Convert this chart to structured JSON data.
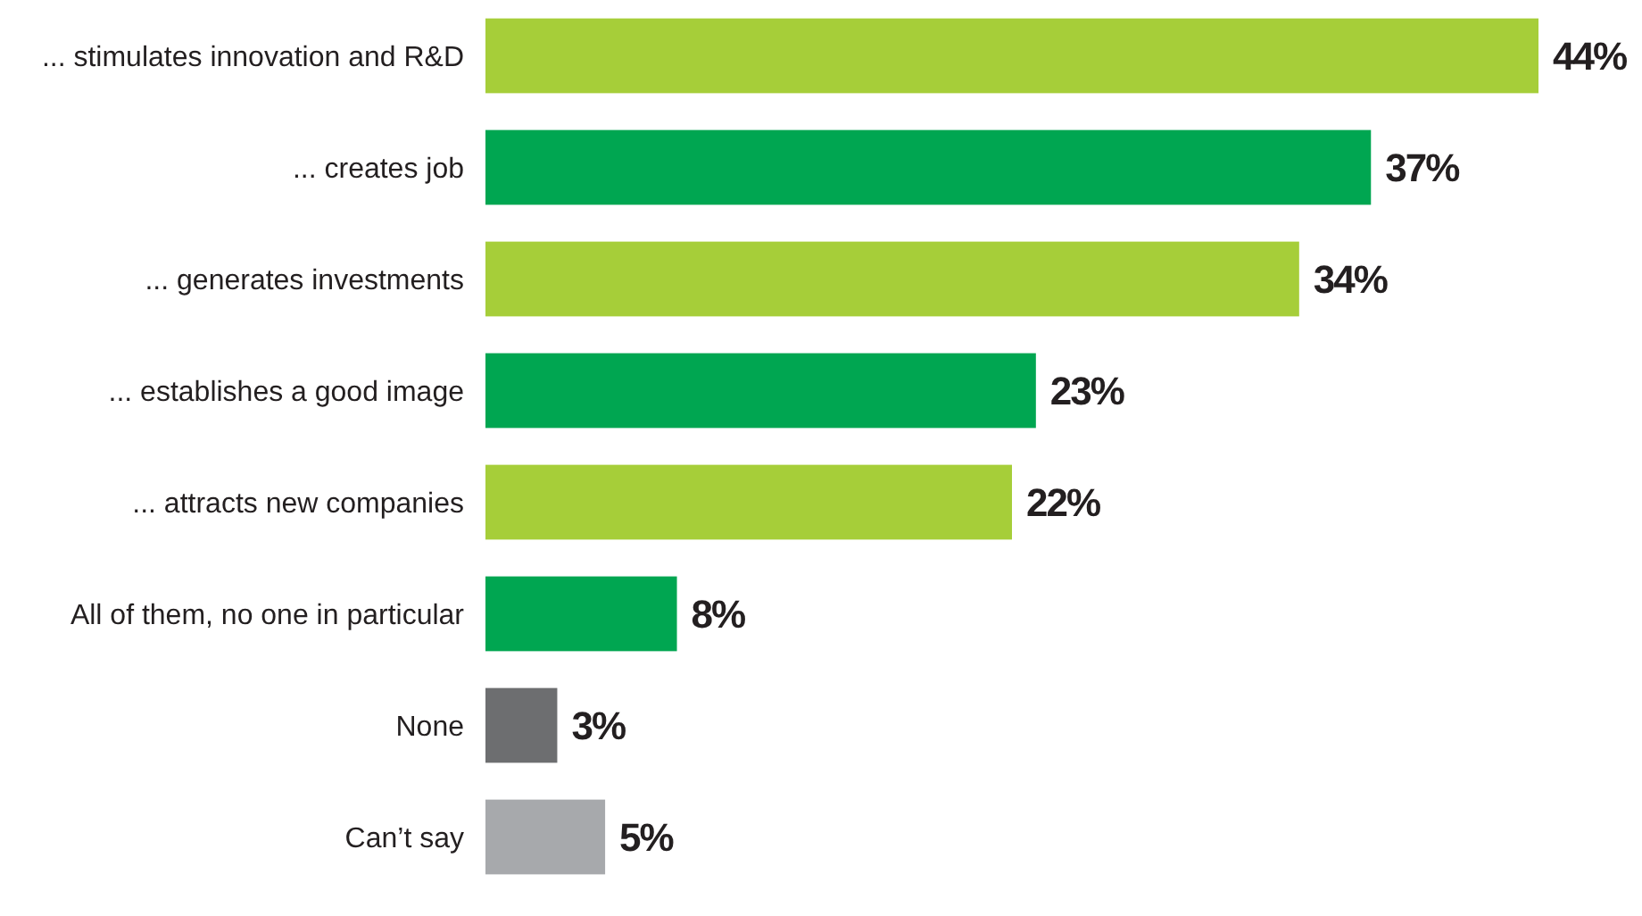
{
  "chart_data": {
    "type": "bar",
    "orientation": "horizontal",
    "categories": [
      "... stimulates innovation and R&D",
      "... creates job",
      "... generates investments",
      "... establishes a good image",
      "... attracts new companies",
      "All of them, no one in particular",
      "None",
      "Can’t say"
    ],
    "values": [
      44,
      37,
      34,
      23,
      22,
      8,
      3,
      5
    ],
    "colors": [
      "#a6ce39",
      "#00a651",
      "#a6ce39",
      "#00a651",
      "#a6ce39",
      "#00a651",
      "#6d6e70",
      "#a7a9ac"
    ],
    "value_labels": [
      "44%",
      "37%",
      "34%",
      "23%",
      "22%",
      "8%",
      "3%",
      "5%"
    ]
  }
}
